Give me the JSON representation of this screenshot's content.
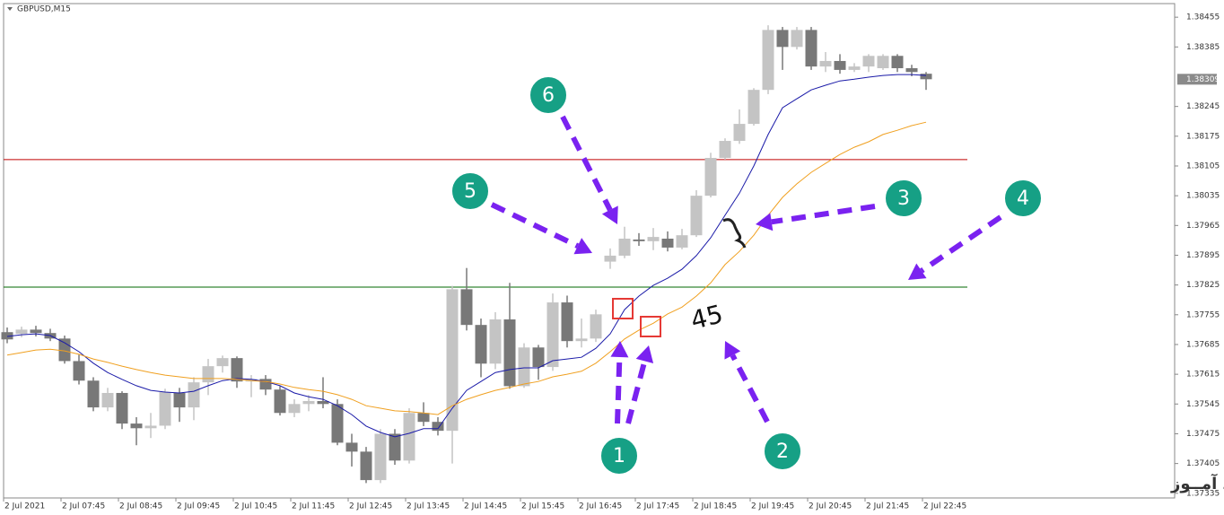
{
  "chart_data": {
    "type": "candlestick",
    "symbol": "GBPUSD,M15",
    "categories": [
      "2 Jul 2021",
      null,
      null,
      null,
      "2 Jul 07:45",
      null,
      null,
      null,
      "2 Jul 08:45",
      null,
      null,
      null,
      "2 Jul 09:45",
      null,
      null,
      null,
      "2 Jul 10:45",
      null,
      null,
      null,
      "2 Jul 11:45",
      null,
      null,
      null,
      "2 Jul 12:45",
      null,
      null,
      null,
      "2 Jul 13:45",
      null,
      null,
      null,
      "2 Jul 14:45",
      null,
      null,
      null,
      "2 Jul 15:45",
      null,
      null,
      null,
      "2 Jul 16:45",
      null,
      null,
      null,
      "2 Jul 17:45",
      null,
      null,
      null,
      "2 Jul 18:45",
      null,
      null,
      null,
      "2 Jul 19:45",
      null,
      null,
      null,
      "2 Jul 20:45",
      null,
      null,
      null,
      "2 Jul 21:45",
      null,
      null,
      null,
      "2 Jul 22:45"
    ],
    "open": [
      1.37714,
      1.3771,
      1.3772,
      1.37712,
      1.37699,
      1.37646,
      1.376,
      1.37537,
      1.37571,
      1.37499,
      1.37488,
      1.37494,
      1.37571,
      1.37537,
      1.37596,
      1.37634,
      1.37653,
      1.37598,
      1.37604,
      1.37579,
      1.37524,
      1.37545,
      1.37552,
      1.37545,
      1.37454,
      1.37433,
      1.37366,
      1.37475,
      1.37412,
      1.37524,
      1.37503,
      1.37482,
      1.37815,
      1.37731,
      1.3764,
      1.37744,
      1.37587,
      1.37678,
      1.37632,
      1.37784,
      1.37693,
      1.37699,
      1.3788,
      1.37894,
      1.37932,
      1.37928,
      1.37934,
      1.37913,
      1.37942,
      1.38035,
      1.38124,
      1.38164,
      1.38204,
      1.38284,
      1.38425,
      1.38385,
      1.38425,
      1.38339,
      1.38352,
      1.38331,
      1.38339,
      1.38335,
      1.38364,
      1.38335,
      1.38322
    ],
    "high": [
      1.37725,
      1.37727,
      1.37729,
      1.37722,
      1.37706,
      1.37661,
      1.37608,
      1.37583,
      1.37575,
      1.37514,
      1.37524,
      1.37581,
      1.37583,
      1.37608,
      1.37651,
      1.37659,
      1.37657,
      1.37613,
      1.37613,
      1.37587,
      1.37556,
      1.37566,
      1.37608,
      1.37556,
      1.37475,
      1.37444,
      1.37486,
      1.37486,
      1.37535,
      1.37549,
      1.37514,
      1.37823,
      1.37865,
      1.37746,
      1.37761,
      1.3783,
      1.37688,
      1.37684,
      1.37805,
      1.378,
      1.37746,
      1.37767,
      1.37911,
      1.37962,
      1.37947,
      1.37959,
      1.37951,
      1.37957,
      1.38048,
      1.38136,
      1.3817,
      1.38238,
      1.38288,
      1.38436,
      1.38432,
      1.38432,
      1.38432,
      1.38373,
      1.38368,
      1.38347,
      1.38368,
      1.38368,
      1.38368,
      1.38343,
      1.38326
    ],
    "low": [
      1.37688,
      1.37702,
      1.37704,
      1.37693,
      1.3764,
      1.37591,
      1.37528,
      1.37528,
      1.37486,
      1.37448,
      1.37465,
      1.37486,
      1.37503,
      1.37507,
      1.37566,
      1.37619,
      1.37583,
      1.37561,
      1.37566,
      1.37518,
      1.37514,
      1.37528,
      1.37535,
      1.37448,
      1.37398,
      1.37359,
      1.37359,
      1.37402,
      1.37405,
      1.37493,
      1.37471,
      1.37405,
      1.37718,
      1.37608,
      1.37627,
      1.37581,
      1.37583,
      1.37602,
      1.37623,
      1.37678,
      1.37678,
      1.37691,
      1.37863,
      1.37888,
      1.37917,
      1.37907,
      1.37904,
      1.37909,
      1.37938,
      1.38031,
      1.3812,
      1.38157,
      1.382,
      1.38274,
      1.38331,
      1.38379,
      1.38331,
      1.38326,
      1.38322,
      1.38326,
      1.38326,
      1.38331,
      1.38326,
      1.38316,
      1.38284
    ],
    "close": [
      1.37697,
      1.3772,
      1.37712,
      1.37699,
      1.37646,
      1.376,
      1.37537,
      1.37571,
      1.37499,
      1.37488,
      1.37494,
      1.37573,
      1.37537,
      1.37596,
      1.37634,
      1.37653,
      1.37598,
      1.37604,
      1.37579,
      1.37524,
      1.37545,
      1.37552,
      1.37545,
      1.37454,
      1.37433,
      1.37366,
      1.37475,
      1.37412,
      1.37524,
      1.37503,
      1.37482,
      1.37815,
      1.37731,
      1.3764,
      1.37744,
      1.37587,
      1.37678,
      1.37632,
      1.37784,
      1.37693,
      1.37699,
      1.37756,
      1.37894,
      1.37934,
      1.37928,
      1.37938,
      1.37913,
      1.37942,
      1.38035,
      1.38124,
      1.38164,
      1.38204,
      1.38284,
      1.38425,
      1.38385,
      1.38425,
      1.38339,
      1.38352,
      1.38331,
      1.38339,
      1.38364,
      1.38364,
      1.38335,
      1.38326,
      1.38309
    ],
    "bull_color": "#c4c4c4",
    "bear_color": "#787878",
    "series": [
      {
        "color": "#1a1aa8",
        "values": [
          1.37704,
          1.37708,
          1.3771,
          1.37706,
          1.37689,
          1.37668,
          1.37641,
          1.37619,
          1.37603,
          1.37588,
          1.37577,
          1.37573,
          1.37571,
          1.37575,
          1.37588,
          1.376,
          1.37605,
          1.37603,
          1.37598,
          1.37588,
          1.37571,
          1.37562,
          1.37556,
          1.37541,
          1.3752,
          1.37493,
          1.37478,
          1.37468,
          1.37476,
          1.37487,
          1.37487,
          1.37535,
          1.37577,
          1.37598,
          1.37619,
          1.37626,
          1.3763,
          1.3763,
          1.37647,
          1.37651,
          1.37655,
          1.37676,
          1.3771,
          1.37767,
          1.37799,
          1.37824,
          1.37841,
          1.37862,
          1.37894,
          1.37936,
          1.37989,
          1.38041,
          1.38105,
          1.38179,
          1.38242,
          1.38263,
          1.38284,
          1.38295,
          1.38305,
          1.38309,
          1.38314,
          1.38318,
          1.3832,
          1.3832,
          1.38318
        ]
      },
      {
        "color": "#f0a020",
        "values": [
          1.3766,
          1.37666,
          1.37672,
          1.37674,
          1.3767,
          1.37662,
          1.37651,
          1.37643,
          1.37634,
          1.37626,
          1.37619,
          1.37613,
          1.37609,
          1.37605,
          1.37605,
          1.37605,
          1.37603,
          1.376,
          1.37598,
          1.37592,
          1.37584,
          1.37579,
          1.37575,
          1.37567,
          1.37556,
          1.37541,
          1.37535,
          1.37529,
          1.37527,
          1.37524,
          1.3752,
          1.37541,
          1.37556,
          1.37567,
          1.37577,
          1.37584,
          1.37592,
          1.37598,
          1.37609,
          1.37615,
          1.37622,
          1.37641,
          1.37668,
          1.37698,
          1.37719,
          1.37735,
          1.37757,
          1.37773,
          1.37799,
          1.3783,
          1.37873,
          1.37904,
          1.37942,
          1.37989,
          1.38031,
          1.38063,
          1.3809,
          1.38111,
          1.38132,
          1.38149,
          1.38162,
          1.38179,
          1.38189,
          1.382,
          1.38208
        ]
      }
    ],
    "hlines": [
      {
        "value": 1.3812,
        "color": "#c00000"
      },
      {
        "value": 1.3782,
        "color": "#006a00"
      }
    ],
    "current_price": 1.38309,
    "ylim": [
      1.37324,
      1.38487
    ],
    "yticks": [
      1.38455,
      1.38385,
      1.38245,
      1.38175,
      1.38105,
      1.38035,
      1.37965,
      1.37895,
      1.37825,
      1.37755,
      1.37685,
      1.37615,
      1.37545,
      1.37475,
      1.37405,
      1.37335
    ],
    "annotations": {
      "markers": [
        "1",
        "2",
        "3",
        "4",
        "5",
        "6"
      ],
      "angle_label": "45",
      "watermark": "انتشار در وبسایت ســود آمــوز"
    }
  }
}
